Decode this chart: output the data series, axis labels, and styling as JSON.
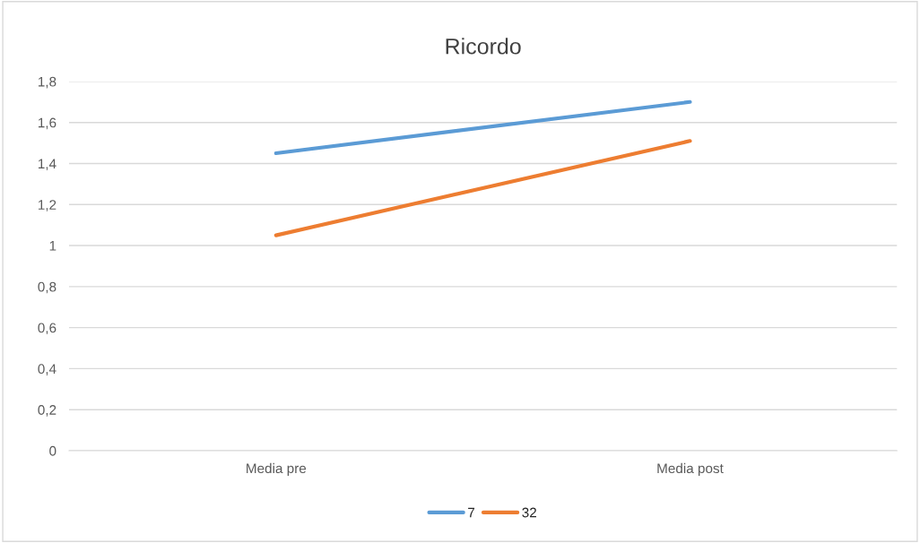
{
  "chart_data": {
    "type": "line",
    "title": "Ricordo",
    "categories": [
      "Media pre",
      "Media post"
    ],
    "series": [
      {
        "name": "7",
        "color": "#5b9bd5",
        "values": [
          1.45,
          1.7
        ]
      },
      {
        "name": "32",
        "color": "#ed7d31",
        "values": [
          1.05,
          1.51
        ]
      }
    ],
    "ylim": [
      0,
      1.8
    ],
    "yticks": [
      0,
      {
        "value": 0.2,
        "label": "0,2"
      },
      {
        "value": 0.4,
        "label": "0,4"
      },
      {
        "value": 0.6,
        "label": "0,6"
      },
      {
        "value": 0.8,
        "label": "0,8"
      },
      1,
      {
        "value": 1.2,
        "label": "1,2"
      },
      {
        "value": 1.4,
        "label": "1,4"
      },
      {
        "value": 1.6,
        "label": "1,6"
      },
      {
        "value": 1.8,
        "label": "1,8"
      }
    ],
    "grid": "y",
    "legend": "bottom",
    "marker": "none",
    "line_style": "solid"
  }
}
